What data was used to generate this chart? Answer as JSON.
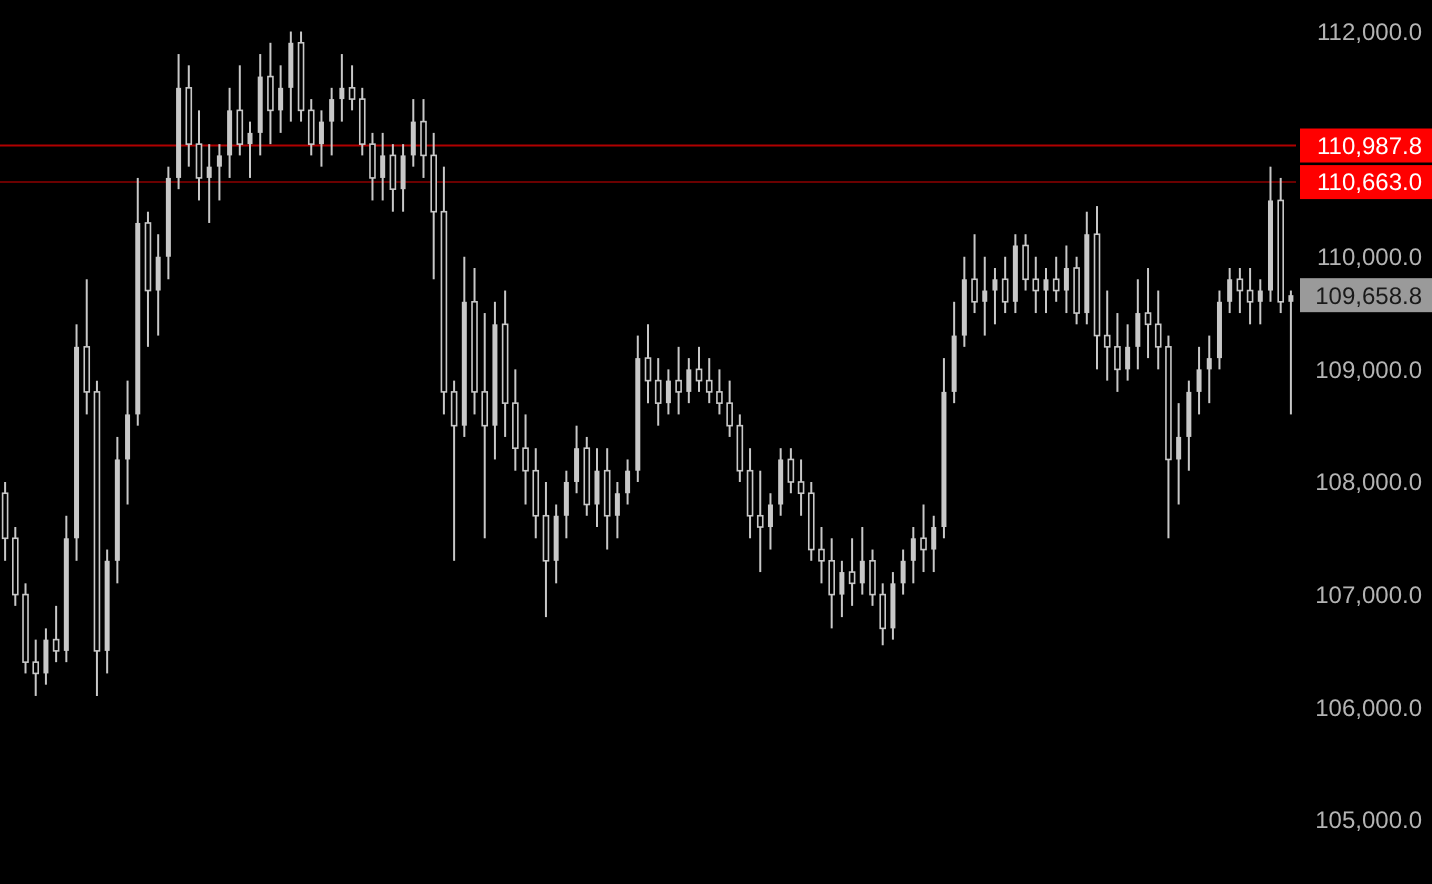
{
  "chart_data": {
    "type": "candlestick",
    "categories": [
      null,
      null,
      null,
      null,
      null,
      null,
      null,
      null,
      null,
      null,
      null,
      null,
      null,
      null,
      null,
      null,
      null,
      null,
      null,
      null,
      null,
      null,
      null,
      null,
      null,
      null,
      null,
      null,
      null,
      null,
      null,
      null,
      null,
      null,
      null,
      null,
      null,
      null,
      null,
      null,
      null,
      null,
      null,
      null,
      null,
      null,
      null,
      null,
      null,
      null,
      null,
      null,
      null,
      null,
      null,
      null,
      null,
      null,
      null,
      null,
      null,
      null,
      null,
      null,
      null,
      null,
      null,
      null,
      null,
      null,
      null,
      null,
      null,
      null,
      null,
      null,
      null,
      null,
      null,
      null,
      null,
      null,
      null,
      null,
      null,
      null,
      null,
      null,
      null,
      null,
      null,
      null,
      null,
      null,
      null,
      null,
      null,
      null,
      null,
      null,
      null,
      null,
      null,
      null,
      null,
      null,
      null,
      null,
      null,
      null,
      null,
      null,
      null,
      null,
      null,
      null,
      null,
      null,
      null,
      null,
      null,
      null,
      null,
      null,
      null,
      null,
      null
    ],
    "series": [
      {
        "color": "#c8c8c8",
        "ohlc": [
          [
            107900,
            108000,
            107300,
            107500
          ],
          [
            107500,
            107600,
            106900,
            107000
          ],
          [
            107000,
            107100,
            106300,
            106400
          ],
          [
            106400,
            106600,
            106100,
            106300
          ],
          [
            106300,
            106700,
            106200,
            106600
          ],
          [
            106600,
            106900,
            106400,
            106500
          ],
          [
            106500,
            107700,
            106400,
            107500
          ],
          [
            107500,
            109400,
            107300,
            109200
          ],
          [
            109200,
            109800,
            108600,
            108800
          ],
          [
            108800,
            108900,
            106100,
            106500
          ],
          [
            106500,
            107400,
            106300,
            107300
          ],
          [
            107300,
            108400,
            107100,
            108200
          ],
          [
            108200,
            108900,
            107800,
            108600
          ],
          [
            108600,
            110700,
            108500,
            110300
          ],
          [
            110300,
            110400,
            109200,
            109700
          ],
          [
            109700,
            110200,
            109300,
            110000
          ],
          [
            110000,
            110800,
            109800,
            110700
          ],
          [
            110700,
            111800,
            110600,
            111500
          ],
          [
            111500,
            111700,
            110800,
            111000
          ],
          [
            111000,
            111300,
            110500,
            110700
          ],
          [
            110700,
            111000,
            110300,
            110800
          ],
          [
            110800,
            111000,
            110500,
            110900
          ],
          [
            110900,
            111500,
            110700,
            111300
          ],
          [
            111300,
            111700,
            110900,
            111000
          ],
          [
            111000,
            111200,
            110700,
            111100
          ],
          [
            111100,
            111800,
            110900,
            111600
          ],
          [
            111600,
            111900,
            111000,
            111300
          ],
          [
            111300,
            111700,
            111100,
            111500
          ],
          [
            111500,
            112000,
            111200,
            111900
          ],
          [
            111900,
            112000,
            111200,
            111300
          ],
          [
            111300,
            111400,
            110900,
            111000
          ],
          [
            111000,
            111300,
            110800,
            111200
          ],
          [
            111200,
            111500,
            110900,
            111400
          ],
          [
            111400,
            111800,
            111200,
            111500
          ],
          [
            111500,
            111700,
            111300,
            111400
          ],
          [
            111400,
            111500,
            110900,
            111000
          ],
          [
            111000,
            111100,
            110500,
            110700
          ],
          [
            110700,
            111100,
            110500,
            110900
          ],
          [
            110900,
            111000,
            110400,
            110600
          ],
          [
            110600,
            111000,
            110400,
            110900
          ],
          [
            110900,
            111400,
            110800,
            111200
          ],
          [
            111200,
            111400,
            110700,
            110900
          ],
          [
            110900,
            111100,
            109800,
            110400
          ],
          [
            110400,
            110800,
            108600,
            108800
          ],
          [
            108800,
            108900,
            107300,
            108500
          ],
          [
            108500,
            110000,
            108400,
            109600
          ],
          [
            109600,
            109900,
            108600,
            108800
          ],
          [
            108800,
            109500,
            107500,
            108500
          ],
          [
            108500,
            109600,
            108200,
            109400
          ],
          [
            109400,
            109700,
            108400,
            108700
          ],
          [
            108700,
            109000,
            108100,
            108300
          ],
          [
            108300,
            108600,
            107800,
            108100
          ],
          [
            108100,
            108300,
            107500,
            107700
          ],
          [
            107700,
            108000,
            106800,
            107300
          ],
          [
            107300,
            107800,
            107100,
            107700
          ],
          [
            107700,
            108100,
            107500,
            108000
          ],
          [
            108000,
            108500,
            107900,
            108300
          ],
          [
            108300,
            108400,
            107700,
            107800
          ],
          [
            107800,
            108300,
            107600,
            108100
          ],
          [
            108100,
            108300,
            107400,
            107700
          ],
          [
            107700,
            108000,
            107500,
            107900
          ],
          [
            107900,
            108200,
            107800,
            108100
          ],
          [
            108100,
            109300,
            108000,
            109100
          ],
          [
            109100,
            109400,
            108700,
            108900
          ],
          [
            108900,
            109100,
            108500,
            108700
          ],
          [
            108700,
            109000,
            108600,
            108900
          ],
          [
            108900,
            109200,
            108600,
            108800
          ],
          [
            108800,
            109100,
            108700,
            109000
          ],
          [
            109000,
            109200,
            108800,
            108900
          ],
          [
            108900,
            109100,
            108700,
            108800
          ],
          [
            108800,
            109000,
            108600,
            108700
          ],
          [
            108700,
            108900,
            108400,
            108500
          ],
          [
            108500,
            108600,
            108000,
            108100
          ],
          [
            108100,
            108300,
            107500,
            107700
          ],
          [
            107700,
            108100,
            107200,
            107600
          ],
          [
            107600,
            107900,
            107400,
            107800
          ],
          [
            107800,
            108300,
            107700,
            108200
          ],
          [
            108200,
            108300,
            107900,
            108000
          ],
          [
            108000,
            108200,
            107700,
            107900
          ],
          [
            107900,
            108000,
            107300,
            107400
          ],
          [
            107400,
            107600,
            107100,
            107300
          ],
          [
            107300,
            107500,
            106700,
            107000
          ],
          [
            107000,
            107300,
            106800,
            107200
          ],
          [
            107200,
            107500,
            106900,
            107100
          ],
          [
            107100,
            107600,
            107000,
            107300
          ],
          [
            107300,
            107400,
            106900,
            107000
          ],
          [
            107000,
            107100,
            106550,
            106700
          ],
          [
            106700,
            107200,
            106600,
            107100
          ],
          [
            107100,
            107400,
            107000,
            107300
          ],
          [
            107300,
            107600,
            107100,
            107500
          ],
          [
            107500,
            107800,
            107200,
            107400
          ],
          [
            107400,
            107700,
            107200,
            107600
          ],
          [
            107600,
            109100,
            107500,
            108800
          ],
          [
            108800,
            109600,
            108700,
            109300
          ],
          [
            109300,
            110000,
            109200,
            109800
          ],
          [
            109800,
            110200,
            109500,
            109600
          ],
          [
            109600,
            110000,
            109300,
            109700
          ],
          [
            109700,
            109900,
            109400,
            109800
          ],
          [
            109800,
            110000,
            109500,
            109600
          ],
          [
            109600,
            110200,
            109500,
            110100
          ],
          [
            110100,
            110200,
            109700,
            109800
          ],
          [
            109800,
            110000,
            109500,
            109700
          ],
          [
            109700,
            109900,
            109500,
            109800
          ],
          [
            109800,
            110000,
            109600,
            109700
          ],
          [
            109700,
            110100,
            109500,
            109900
          ],
          [
            109900,
            110000,
            109400,
            109500
          ],
          [
            109500,
            110400,
            109400,
            110200
          ],
          [
            110200,
            110450,
            109000,
            109300
          ],
          [
            109300,
            109700,
            108900,
            109200
          ],
          [
            109200,
            109500,
            108800,
            109000
          ],
          [
            109000,
            109400,
            108900,
            109200
          ],
          [
            109200,
            109800,
            109000,
            109500
          ],
          [
            109500,
            109900,
            109100,
            109400
          ],
          [
            109400,
            109700,
            109000,
            109200
          ],
          [
            109200,
            109300,
            107500,
            108200
          ],
          [
            108200,
            108700,
            107800,
            108400
          ],
          [
            108400,
            108900,
            108100,
            108800
          ],
          [
            108800,
            109200,
            108600,
            109000
          ],
          [
            109000,
            109300,
            108700,
            109100
          ],
          [
            109100,
            109700,
            109000,
            109600
          ],
          [
            109600,
            109900,
            109500,
            109800
          ],
          [
            109800,
            109900,
            109500,
            109700
          ],
          [
            109700,
            109900,
            109400,
            109600
          ],
          [
            109600,
            109800,
            109400,
            109700
          ],
          [
            109700,
            110800,
            109600,
            110500
          ],
          [
            110500,
            110700,
            109500,
            109600
          ],
          [
            109600,
            109700,
            108600,
            109658.8
          ]
        ]
      }
    ],
    "ylim": [
      104430,
      112280
    ],
    "yticks": [
      {
        "value": 105000,
        "label": "105,000.0"
      },
      {
        "value": 106000,
        "label": "106,000.0"
      },
      {
        "value": 107000,
        "label": "107,000.0"
      },
      {
        "value": 108000,
        "label": "108,000.0"
      },
      {
        "value": 109000,
        "label": "109,000.0"
      },
      {
        "value": 110000,
        "label": "110,000.0"
      },
      {
        "value": 112000,
        "label": "112,000.0"
      }
    ],
    "tick_labels": "y",
    "ref_lines": [
      {
        "axis": "y",
        "value": 110987.8,
        "label": "110,987.8",
        "color": "#b00000"
      },
      {
        "axis": "y",
        "value": 110663.0,
        "label": "110,663.0",
        "color": "#6a0000"
      }
    ],
    "annotations": [
      "109,658.8"
    ]
  }
}
